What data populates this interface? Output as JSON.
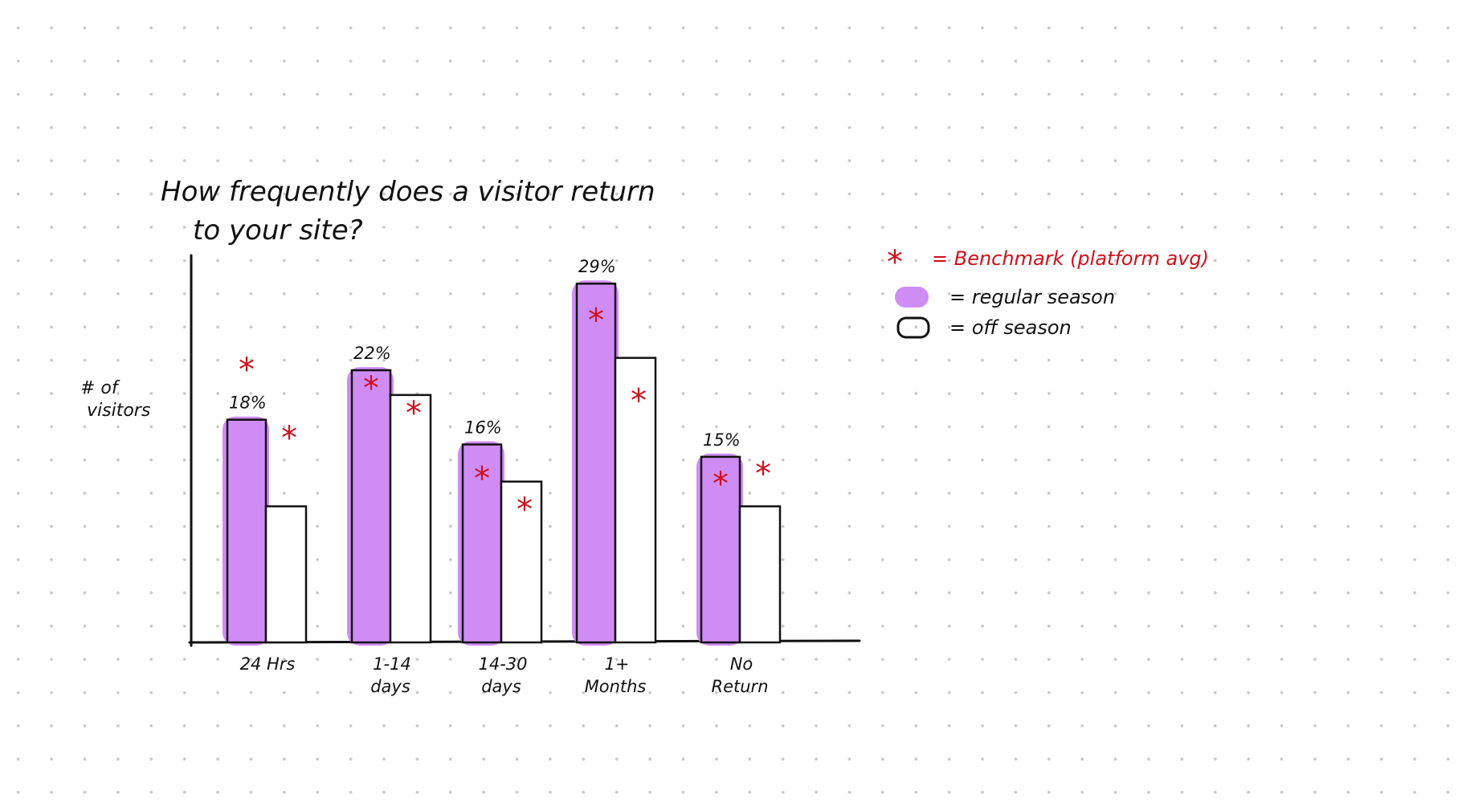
{
  "chart_data": {
    "type": "bar",
    "title_line1": "How frequently does a visitor return",
    "title_line2": "to your site?",
    "ylabel_line1": "# of",
    "ylabel_line2": "visitors",
    "categories": [
      {
        "line1": "24 Hrs",
        "line2": ""
      },
      {
        "line1": "1-14",
        "line2": "days"
      },
      {
        "line1": "14-30",
        "line2": "days"
      },
      {
        "line1": "1+",
        "line2": "Months"
      },
      {
        "line1": "No",
        "line2": "Return"
      }
    ],
    "series": [
      {
        "name": "regular season",
        "values": [
          18,
          22,
          16,
          29,
          15
        ],
        "labels": [
          "18%",
          "22%",
          "16%",
          "29%",
          "15%"
        ]
      },
      {
        "name": "off season",
        "values": [
          11,
          20,
          13,
          23,
          11
        ]
      },
      {
        "name": "Benchmark (platform avg)",
        "marker": "*",
        "values": [
          22,
          20.5,
          13.2,
          26,
          12.8
        ],
        "values_offseason": [
          16.5,
          18.5,
          10.7,
          19.5,
          13.6
        ]
      }
    ],
    "ylim": [
      0,
      37
    ],
    "grid": false,
    "legend_position": "top-right"
  },
  "legend": {
    "benchmark": "= Benchmark (platform avg)",
    "regular": "= regular season",
    "off": "= off season"
  },
  "colors": {
    "regular_fill": "#d08cf5",
    "benchmark": "#d0101c",
    "ink": "#111111"
  }
}
